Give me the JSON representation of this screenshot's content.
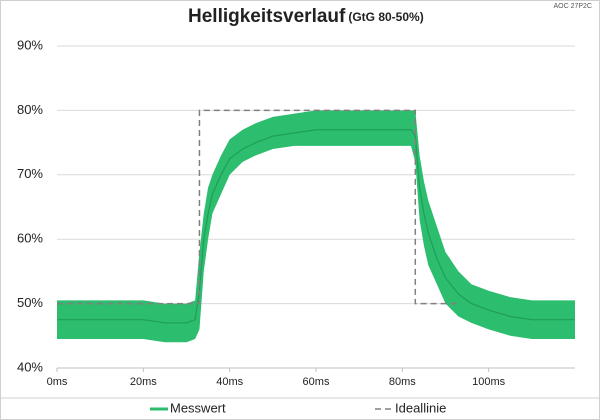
{
  "chart_data": {
    "type": "line",
    "title": "Helligkeitsverlauf",
    "subtitle": "(GtG 80-50%)",
    "corner_note": "AOC 27P2C",
    "xlim": [
      0,
      120
    ],
    "xticks": [
      {
        "value": 0,
        "label": "0ms"
      },
      {
        "value": 20,
        "label": "20ms"
      },
      {
        "value": 40,
        "label": "40ms"
      },
      {
        "value": 60,
        "label": "60ms"
      },
      {
        "value": 80,
        "label": "80ms"
      },
      {
        "value": 100,
        "label": "100ms"
      }
    ],
    "ylim": [
      40,
      90
    ],
    "yticks": [
      {
        "value": 40,
        "label": "40%"
      },
      {
        "value": 50,
        "label": "50%"
      },
      {
        "value": 60,
        "label": "60%"
      },
      {
        "value": 70,
        "label": "70%"
      },
      {
        "value": 80,
        "label": "80%"
      },
      {
        "value": 90,
        "label": "90%"
      }
    ],
    "grid": true,
    "legend": "bottom",
    "series": [
      {
        "name": "Messwert",
        "color": "#2dbd6e",
        "x": [
          0,
          5,
          10,
          15,
          20,
          25,
          30,
          32,
          33,
          34,
          35,
          36,
          38,
          40,
          43,
          46,
          50,
          55,
          60,
          65,
          70,
          75,
          80,
          82,
          83,
          84,
          85,
          86,
          88,
          90,
          93,
          96,
          100,
          105,
          110,
          115,
          120
        ],
        "values": [
          47.5,
          47.5,
          47.5,
          47.5,
          47.5,
          47,
          47,
          47.5,
          52,
          60,
          64,
          67,
          70,
          72.5,
          74,
          75,
          76,
          76.5,
          77,
          77,
          77,
          77,
          77,
          77,
          76,
          68,
          64,
          61,
          57,
          54,
          51.5,
          50,
          49,
          48,
          47.5,
          47.5,
          47.5
        ],
        "low": [
          44.5,
          44.5,
          44.5,
          44.5,
          44.5,
          44,
          44,
          44.5,
          46,
          55,
          60,
          64,
          67,
          70,
          72,
          73,
          74,
          74.5,
          74.5,
          74.5,
          74.5,
          74.5,
          74.5,
          74.5,
          72,
          63,
          59,
          56,
          53,
          50,
          48,
          47,
          46,
          45,
          44.5,
          44.5,
          44.5
        ],
        "high": [
          50.5,
          50.5,
          50.5,
          50.5,
          50.5,
          50,
          50,
          50.5,
          58,
          64,
          68,
          70,
          73,
          75.5,
          77,
          78,
          79,
          79.5,
          80,
          80,
          80,
          80,
          80,
          80,
          80,
          73,
          69,
          66,
          62,
          58,
          55,
          53,
          52,
          51,
          50.5,
          50.5,
          50.5
        ]
      },
      {
        "name": "Ideallinie",
        "color": "#808080",
        "dash": true,
        "x": [
          0,
          33,
          33,
          83,
          83,
          93
        ],
        "values": [
          50,
          50,
          80,
          80,
          50,
          50
        ]
      }
    ]
  }
}
